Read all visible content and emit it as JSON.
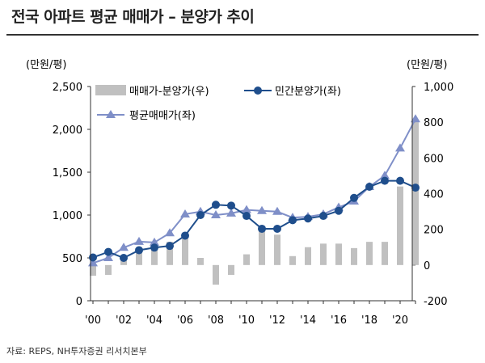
{
  "title": "전국 아파트 평균 매매가 – 분양가 추이",
  "source": "자료: REPS, NH투자증권 리서치본부",
  "colors": {
    "bar": "#c0c0c0",
    "private": "#1f4e8c",
    "avg": "#7f8fc8",
    "axis": "#333333"
  },
  "chart_data": {
    "type": "bar+line",
    "x": [
      "2000",
      "2001",
      "2002",
      "2003",
      "2004",
      "2005",
      "2006",
      "2007",
      "2008",
      "2009",
      "2010",
      "2011",
      "2012",
      "2013",
      "2014",
      "2015",
      "2016",
      "2017",
      "2018",
      "2019",
      "2020",
      "2021"
    ],
    "xtick_labels": [
      "'00",
      "'02",
      "'04",
      "'06",
      "'08",
      "'10",
      "'12",
      "'14",
      "'16",
      "'18",
      "'20"
    ],
    "xtick_positions": [
      "2000",
      "2002",
      "2004",
      "2006",
      "2008",
      "2010",
      "2012",
      "2014",
      "2016",
      "2018",
      "2020"
    ],
    "left_axis": {
      "label": "(만원/평)",
      "ylim": [
        0,
        2500
      ],
      "ticks": [
        0,
        500,
        1000,
        1500,
        2000,
        2500
      ],
      "tick_labels": [
        "0",
        "500",
        "1,000",
        "1,500",
        "2,000",
        "2,500"
      ]
    },
    "right_axis": {
      "label": "(만원/평)",
      "ylim": [
        -200,
        1000
      ],
      "ticks": [
        -200,
        0,
        200,
        400,
        600,
        800,
        1000
      ],
      "tick_labels": [
        "-200",
        "0",
        "200",
        "400",
        "600",
        "800",
        "1,000"
      ]
    },
    "series": [
      {
        "name": "매매가-분양가(우)",
        "type": "bar",
        "axis": "right",
        "values": [
          -60,
          -55,
          25,
          75,
          100,
          130,
          150,
          40,
          -110,
          -55,
          60,
          200,
          170,
          50,
          100,
          120,
          120,
          95,
          130,
          130,
          440,
          800
        ]
      },
      {
        "name": "민간분양가(좌)",
        "type": "line",
        "axis": "left",
        "values": [
          505,
          570,
          500,
          590,
          620,
          640,
          760,
          1000,
          1120,
          1110,
          990,
          840,
          840,
          940,
          960,
          990,
          1050,
          1200,
          1330,
          1400,
          1400,
          1320
        ]
      },
      {
        "name": "평균매매가(좌)",
        "type": "line",
        "axis": "left",
        "values": [
          440,
          500,
          620,
          690,
          680,
          790,
          1010,
          1040,
          1000,
          1020,
          1060,
          1050,
          1040,
          970,
          980,
          1010,
          1090,
          1160,
          1330,
          1460,
          1780,
          2120
        ]
      }
    ],
    "legend": "top-left",
    "grid": false
  }
}
